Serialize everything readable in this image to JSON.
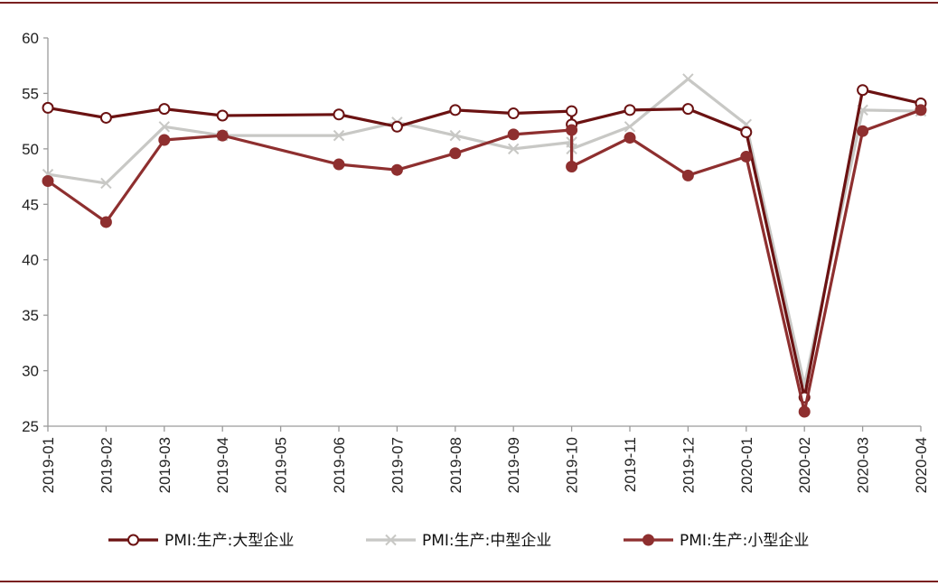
{
  "chart_data": {
    "type": "line",
    "categories": [
      "2019-01",
      "2019-02",
      "2019-03",
      "2019-04",
      "2019-05",
      "2019-06",
      "2019-07",
      "2019-08",
      "2019-09",
      "2019-10",
      "2019-11",
      "2019-12",
      "2020-01",
      "2020-02",
      "2020-03",
      "2020-04"
    ],
    "ylim": [
      25,
      60
    ],
    "yticks": [
      25,
      30,
      35,
      40,
      45,
      50,
      55,
      60
    ],
    "grid": false,
    "legend_position": "bottom",
    "series": [
      {
        "name": "PMI:生产:大型企业",
        "color": "#6b1212",
        "marker": "open-circle",
        "points": [
          {
            "x": 0,
            "y": 53.7
          },
          {
            "x": 1,
            "y": 52.8
          },
          {
            "x": 2,
            "y": 53.6
          },
          {
            "x": 3,
            "y": 53.0
          },
          {
            "x": 5,
            "y": 53.1
          },
          {
            "x": 6,
            "y": 52.0
          },
          {
            "x": 7,
            "y": 53.5
          },
          {
            "x": 8,
            "y": 53.2
          },
          {
            "x": 9,
            "y": 53.4
          },
          {
            "x": 9,
            "y": 52.2
          },
          {
            "x": 10,
            "y": 53.5
          },
          {
            "x": 11,
            "y": 53.6
          },
          {
            "x": 12,
            "y": 51.5
          },
          {
            "x": 13,
            "y": 27.6
          },
          {
            "x": 14,
            "y": 55.3
          },
          {
            "x": 15,
            "y": 54.1
          }
        ]
      },
      {
        "name": "PMI:生产:中型企业",
        "color": "#c8c8c5",
        "marker": "x",
        "points": [
          {
            "x": 0,
            "y": 47.7
          },
          {
            "x": 1,
            "y": 46.9
          },
          {
            "x": 2,
            "y": 52.0
          },
          {
            "x": 3,
            "y": 51.2
          },
          {
            "x": 5,
            "y": 51.2
          },
          {
            "x": 6,
            "y": 52.4
          },
          {
            "x": 7,
            "y": 51.2
          },
          {
            "x": 8,
            "y": 50.0
          },
          {
            "x": 9,
            "y": 50.6
          },
          {
            "x": 9,
            "y": 50.0
          },
          {
            "x": 10,
            "y": 52.0
          },
          {
            "x": 11,
            "y": 56.3
          },
          {
            "x": 12,
            "y": 52.2
          },
          {
            "x": 13,
            "y": 28.7
          },
          {
            "x": 14,
            "y": 53.5
          },
          {
            "x": 15,
            "y": 53.4
          }
        ]
      },
      {
        "name": "PMI:生产:小型企业",
        "color": "#8e2f2f",
        "marker": "filled-circle",
        "points": [
          {
            "x": 0,
            "y": 47.1
          },
          {
            "x": 1,
            "y": 43.4
          },
          {
            "x": 2,
            "y": 50.8
          },
          {
            "x": 3,
            "y": 51.2
          },
          {
            "x": 5,
            "y": 48.6
          },
          {
            "x": 6,
            "y": 48.1
          },
          {
            "x": 7,
            "y": 49.6
          },
          {
            "x": 8,
            "y": 51.3
          },
          {
            "x": 9,
            "y": 51.7
          },
          {
            "x": 9,
            "y": 48.4
          },
          {
            "x": 10,
            "y": 51.0
          },
          {
            "x": 11,
            "y": 47.6
          },
          {
            "x": 12,
            "y": 49.3
          },
          {
            "x": 13,
            "y": 26.3
          },
          {
            "x": 14,
            "y": 51.6
          },
          {
            "x": 15,
            "y": 53.5
          }
        ]
      }
    ]
  },
  "frame": {
    "rule_color": "#7a2020"
  }
}
